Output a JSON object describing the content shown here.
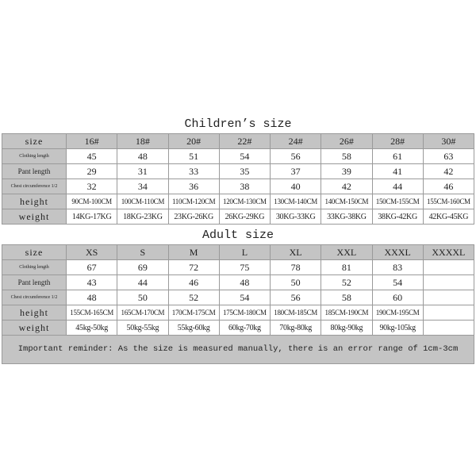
{
  "children": {
    "title": "Children’s size",
    "header": [
      "size",
      "16#",
      "18#",
      "20#",
      "22#",
      "24#",
      "26#",
      "28#",
      "30#"
    ],
    "rows": [
      {
        "label": "Clothing length",
        "values": [
          "45",
          "48",
          "51",
          "54",
          "56",
          "58",
          "61",
          "63"
        ]
      },
      {
        "label": "Pant length",
        "values": [
          "29",
          "31",
          "33",
          "35",
          "37",
          "39",
          "41",
          "42"
        ]
      },
      {
        "label": "Chest circumference 1/2",
        "values": [
          "32",
          "34",
          "36",
          "38",
          "40",
          "42",
          "44",
          "46"
        ]
      },
      {
        "label": "height",
        "values": [
          "90CM-100CM",
          "100CM-110CM",
          "110CM-120CM",
          "120CM-130CM",
          "130CM-140CM",
          "140CM-150CM",
          "150CM-155CM",
          "155CM-160CM"
        ]
      },
      {
        "label": "weight",
        "values": [
          "14KG-17KG",
          "18KG-23KG",
          "23KG-26KG",
          "26KG-29KG",
          "30KG-33KG",
          "33KG-38KG",
          "38KG-42KG",
          "42KG-45KG"
        ]
      }
    ]
  },
  "adult": {
    "title": "Adult size",
    "header": [
      "size",
      "XS",
      "S",
      "M",
      "L",
      "XL",
      "XXL",
      "XXXL",
      "XXXXL"
    ],
    "rows": [
      {
        "label": "Clothing length",
        "values": [
          "67",
          "69",
          "72",
          "75",
          "78",
          "81",
          "83",
          ""
        ]
      },
      {
        "label": "Pant length",
        "values": [
          "43",
          "44",
          "46",
          "48",
          "50",
          "52",
          "54",
          ""
        ]
      },
      {
        "label": "Chest circumference 1/2",
        "values": [
          "48",
          "50",
          "52",
          "54",
          "56",
          "58",
          "60",
          ""
        ]
      },
      {
        "label": "height",
        "values": [
          "155CM-165CM",
          "165CM-170CM",
          "170CM-175CM",
          "175CM-180CM",
          "180CM-185CM",
          "185CM-190CM",
          "190CM-195CM",
          ""
        ]
      },
      {
        "label": "weight",
        "values": [
          "45kg-50kg",
          "50kg-55kg",
          "55kg-60kg",
          "60kg-70kg",
          "70kg-80kg",
          "80kg-90kg",
          "90kg-105kg",
          ""
        ]
      }
    ]
  },
  "reminder": "Important reminder: As the size is measured manually, there is an error range of 1cm-3cm"
}
